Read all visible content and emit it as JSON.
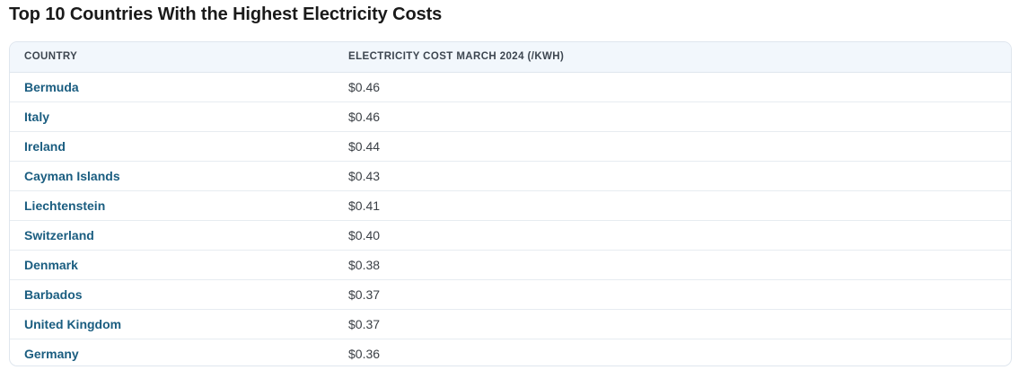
{
  "title": "Top 10 Countries With the Highest Electricity Costs",
  "table": {
    "headers": {
      "country": "COUNTRY",
      "cost": "ELECTRICITY COST MARCH 2024 (/KWH)"
    },
    "rows": [
      {
        "country": "Bermuda",
        "cost": "$0.46"
      },
      {
        "country": "Italy",
        "cost": "$0.46"
      },
      {
        "country": "Ireland",
        "cost": "$0.44"
      },
      {
        "country": "Cayman Islands",
        "cost": "$0.43"
      },
      {
        "country": "Liechtenstein",
        "cost": "$0.41"
      },
      {
        "country": "Switzerland",
        "cost": "$0.40"
      },
      {
        "country": "Denmark",
        "cost": "$0.38"
      },
      {
        "country": "Barbados",
        "cost": "$0.37"
      },
      {
        "country": "United Kingdom",
        "cost": "$0.37"
      },
      {
        "country": "Germany",
        "cost": "$0.36"
      }
    ]
  },
  "colors": {
    "country_link": "#1a5d80",
    "header_bg": "#f2f7fc",
    "border": "#dfe6ee"
  }
}
